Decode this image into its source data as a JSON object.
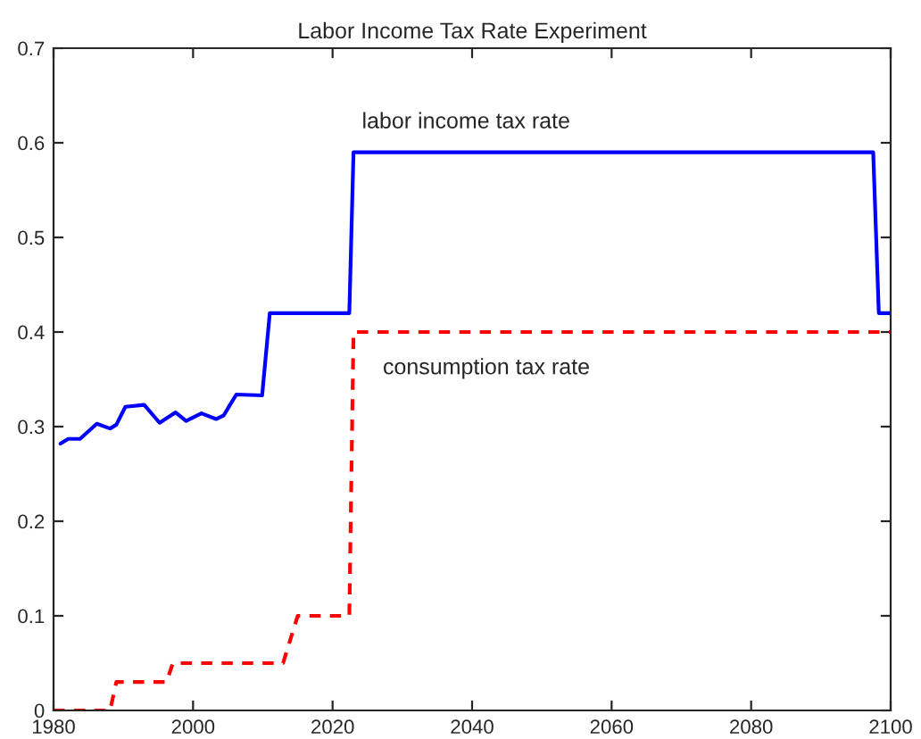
{
  "chart_data": {
    "type": "line",
    "title": "Labor Income Tax Rate Experiment",
    "xlim": [
      1980,
      2100
    ],
    "xticks": [
      1980,
      2000,
      2020,
      2040,
      2060,
      2080,
      2100
    ],
    "ylim": [
      0,
      0.7
    ],
    "yticks": [
      0,
      0.1,
      0.2,
      0.3,
      0.4,
      0.5,
      0.6,
      0.7
    ],
    "grid": false,
    "series": [
      {
        "name": "labor income tax rate",
        "color": "#0000ff",
        "line_style": "solid",
        "x": [
          1981,
          1982.1,
          1983.8,
          1986.2,
          1988.1,
          1989,
          1990.3,
          1993,
          1995.2,
          1997.5,
          1999,
          2001.2,
          2003.3,
          2004.4,
          2006.2,
          2009.9,
          2011,
          2022.4,
          2023,
          2097.5,
          2098.3,
          2100
        ],
        "values": [
          0.282,
          0.287,
          0.287,
          0.303,
          0.298,
          0.302,
          0.321,
          0.323,
          0.304,
          0.315,
          0.306,
          0.314,
          0.308,
          0.312,
          0.334,
          0.333,
          0.42,
          0.42,
          0.59,
          0.59,
          0.42,
          0.42
        ]
      },
      {
        "name": "consumption tax rate",
        "color": "#ff0000",
        "line_style": "dashed",
        "x": [
          1980,
          1988.1,
          1989,
          1996.2,
          1997.1,
          2012.9,
          2015,
          2022.4,
          2023,
          2100
        ],
        "values": [
          0,
          0,
          0.03,
          0.03,
          0.05,
          0.05,
          0.1,
          0.1,
          0.4,
          0.4
        ]
      }
    ]
  }
}
